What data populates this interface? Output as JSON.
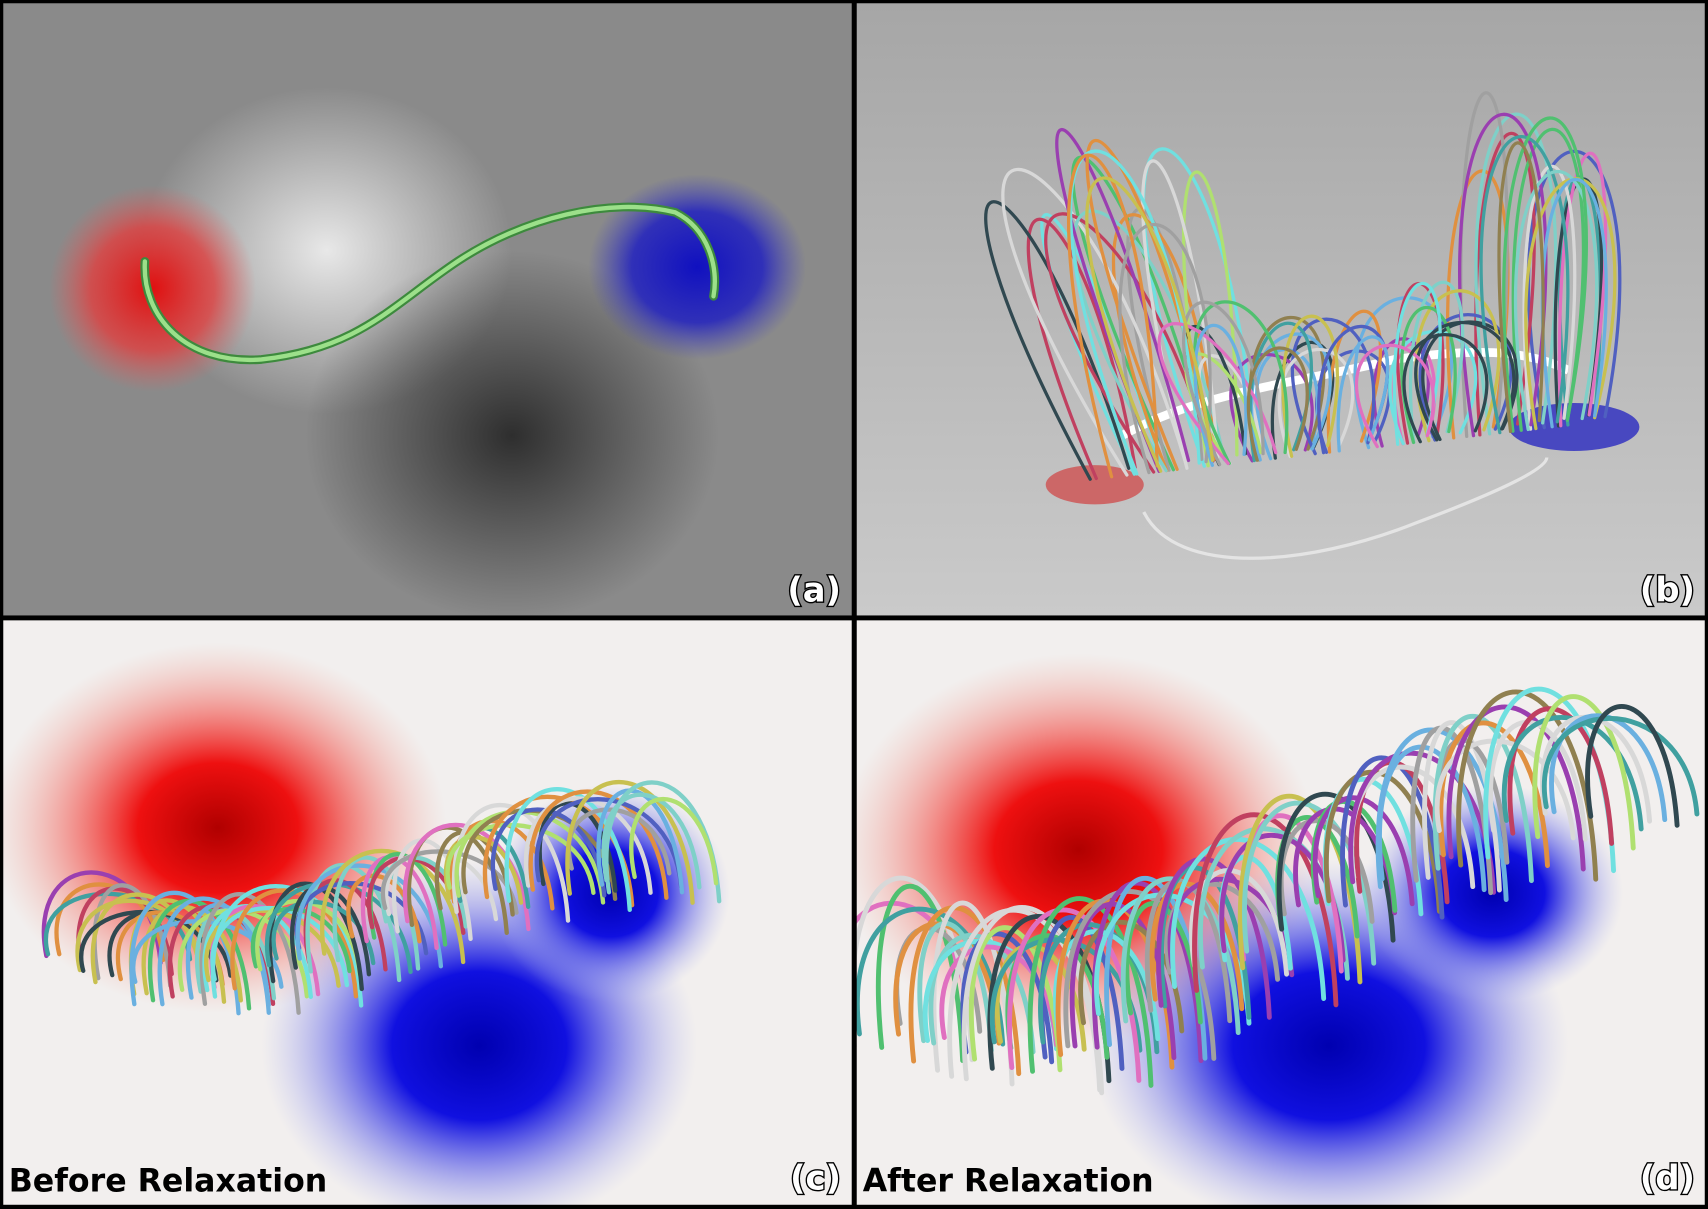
{
  "panels": [
    {
      "label": "(a)"
    },
    {
      "label": "(b)"
    },
    {
      "label": "(c)",
      "caption": "Before Relaxation"
    },
    {
      "label": "(d)",
      "caption": "After Relaxation"
    }
  ]
}
